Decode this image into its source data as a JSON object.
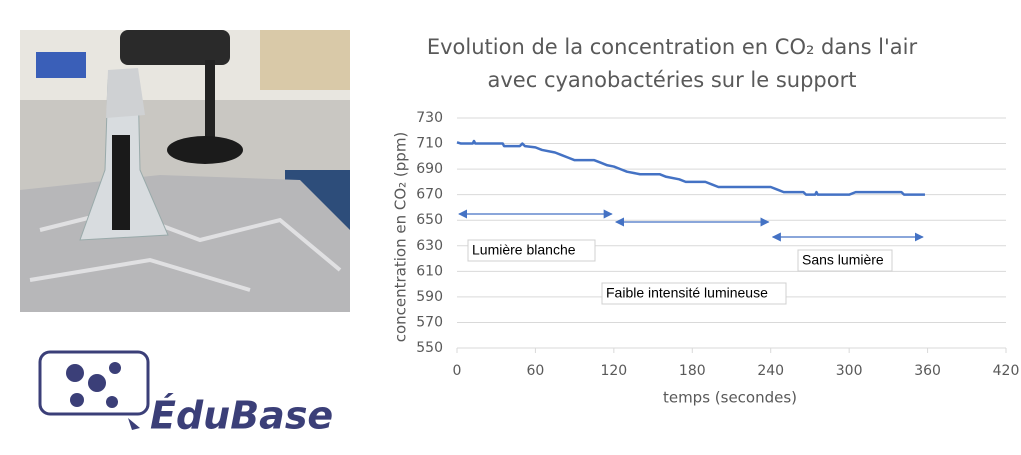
{
  "logo": {
    "text": "ÉduBase"
  },
  "chart_data": {
    "type": "line",
    "title": [
      "Evolution de la concentration en CO₂ dans l'air",
      "avec cyanobactéries sur le support"
    ],
    "xlabel": "temps (secondes)",
    "ylabel": "concentration en CO₂ (ppm)",
    "x": [
      0,
      3,
      12,
      13,
      14,
      35,
      36,
      48,
      50,
      52,
      60,
      65,
      75,
      80,
      85,
      90,
      105,
      110,
      115,
      120,
      125,
      130,
      140,
      155,
      160,
      170,
      175,
      190,
      195,
      200,
      240,
      245,
      250,
      265,
      267,
      274,
      275,
      276,
      300,
      305,
      310,
      340,
      342,
      358
    ],
    "series": [
      {
        "name": "CO₂",
        "color": "#4472c4",
        "values": [
          711,
          710,
          710,
          712,
          710,
          710,
          708,
          708,
          710,
          708,
          707,
          705,
          703,
          701,
          699,
          697,
          697,
          695,
          693,
          692,
          690,
          688,
          686,
          686,
          684,
          682,
          680,
          680,
          678,
          676,
          676,
          674,
          672,
          672,
          670,
          670,
          672,
          670,
          670,
          672,
          672,
          672,
          670,
          670
        ]
      }
    ],
    "xlim": [
      0,
      420
    ],
    "xticks": [
      0,
      60,
      120,
      180,
      240,
      300,
      360,
      420
    ],
    "ylim": [
      550,
      730
    ],
    "yticks": [
      550,
      570,
      590,
      610,
      630,
      650,
      670,
      690,
      710,
      730
    ],
    "grid": true,
    "annotations": [
      {
        "text": "Lumière blanche",
        "x": [
          0,
          120
        ]
      },
      {
        "text": "Faible intensité lumineuse",
        "x": [
          120,
          240
        ]
      },
      {
        "text": "Sans lumière",
        "x": [
          240,
          358
        ]
      }
    ]
  }
}
